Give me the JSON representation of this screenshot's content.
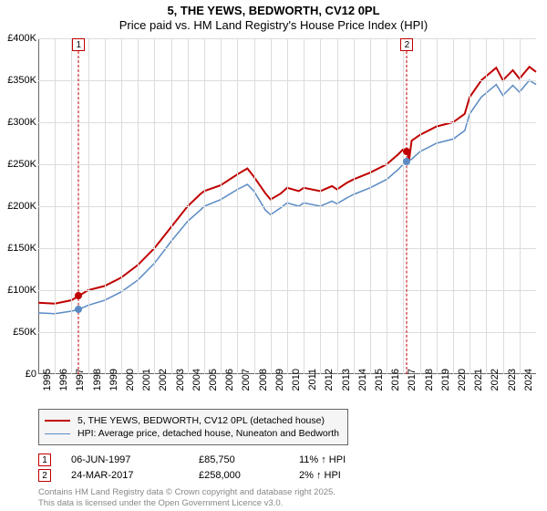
{
  "title": "5, THE YEWS, BEDWORTH, CV12 0PL",
  "subtitle": "Price paid vs. HM Land Registry's House Price Index (HPI)",
  "chart": {
    "type": "line",
    "x_start": 1995,
    "x_end": 2025,
    "x_ticks": [
      1995,
      1996,
      1997,
      1998,
      1999,
      2000,
      2001,
      2002,
      2003,
      2004,
      2005,
      2006,
      2007,
      2008,
      2009,
      2010,
      2011,
      2012,
      2013,
      2014,
      2015,
      2016,
      2017,
      2018,
      2019,
      2020,
      2021,
      2022,
      2023,
      2024
    ],
    "y_min": 0,
    "y_max": 400000,
    "y_ticks": [
      0,
      50000,
      100000,
      150000,
      200000,
      250000,
      300000,
      350000,
      400000
    ],
    "y_tick_labels": [
      "£0",
      "£50K",
      "£100K",
      "£150K",
      "£200K",
      "£250K",
      "£300K",
      "£350K",
      "£400K"
    ],
    "grid_color": "#dcdcdc",
    "axis_color": "#666666",
    "background_color": "#ffffff",
    "series_red": {
      "color": "#c00000",
      "width": 2,
      "points": [
        [
          1995,
          85000
        ],
        [
          1996,
          84000
        ],
        [
          1997,
          88000
        ],
        [
          1997.43,
          93000
        ],
        [
          1998,
          100000
        ],
        [
          1999,
          105000
        ],
        [
          2000,
          115000
        ],
        [
          2001,
          130000
        ],
        [
          2002,
          150000
        ],
        [
          2003,
          175000
        ],
        [
          2004,
          200000
        ],
        [
          2004.8,
          215000
        ],
        [
          2005,
          218000
        ],
        [
          2006,
          225000
        ],
        [
          2007,
          238000
        ],
        [
          2007.6,
          245000
        ],
        [
          2008,
          235000
        ],
        [
          2008.7,
          215000
        ],
        [
          2009,
          208000
        ],
        [
          2009.6,
          215000
        ],
        [
          2010,
          222000
        ],
        [
          2010.7,
          218000
        ],
        [
          2011,
          222000
        ],
        [
          2012,
          218000
        ],
        [
          2012.7,
          224000
        ],
        [
          2013,
          220000
        ],
        [
          2013.6,
          228000
        ],
        [
          2014,
          232000
        ],
        [
          2015,
          240000
        ],
        [
          2016,
          250000
        ],
        [
          2016.7,
          262000
        ],
        [
          2017,
          268000
        ],
        [
          2017.22,
          265000
        ],
        [
          2017.35,
          255000
        ],
        [
          2017.5,
          278000
        ],
        [
          2018,
          285000
        ],
        [
          2019,
          295000
        ],
        [
          2020,
          300000
        ],
        [
          2020.7,
          310000
        ],
        [
          2021,
          330000
        ],
        [
          2021.7,
          350000
        ],
        [
          2022,
          355000
        ],
        [
          2022.6,
          365000
        ],
        [
          2023,
          350000
        ],
        [
          2023.6,
          362000
        ],
        [
          2024,
          352000
        ],
        [
          2024.6,
          366000
        ],
        [
          2025,
          360000
        ]
      ]
    },
    "series_blue": {
      "color": "#5a8bc4",
      "width": 1.5,
      "points": [
        [
          1995,
          73000
        ],
        [
          1996,
          72000
        ],
        [
          1997,
          75000
        ],
        [
          1997.43,
          77000
        ],
        [
          1998,
          82000
        ],
        [
          1999,
          88000
        ],
        [
          2000,
          98000
        ],
        [
          2001,
          112000
        ],
        [
          2002,
          132000
        ],
        [
          2003,
          158000
        ],
        [
          2004,
          182000
        ],
        [
          2004.8,
          196000
        ],
        [
          2005,
          200000
        ],
        [
          2006,
          208000
        ],
        [
          2007,
          220000
        ],
        [
          2007.6,
          226000
        ],
        [
          2008,
          218000
        ],
        [
          2008.7,
          195000
        ],
        [
          2009,
          190000
        ],
        [
          2009.6,
          198000
        ],
        [
          2010,
          204000
        ],
        [
          2010.7,
          200000
        ],
        [
          2011,
          204000
        ],
        [
          2012,
          200000
        ],
        [
          2012.7,
          206000
        ],
        [
          2013,
          203000
        ],
        [
          2013.6,
          210000
        ],
        [
          2014,
          214000
        ],
        [
          2015,
          222000
        ],
        [
          2016,
          232000
        ],
        [
          2016.7,
          244000
        ],
        [
          2017,
          250000
        ],
        [
          2017.22,
          253000
        ],
        [
          2017.5,
          256000
        ],
        [
          2018,
          265000
        ],
        [
          2019,
          275000
        ],
        [
          2020,
          280000
        ],
        [
          2020.7,
          290000
        ],
        [
          2021,
          310000
        ],
        [
          2021.7,
          330000
        ],
        [
          2022,
          335000
        ],
        [
          2022.6,
          345000
        ],
        [
          2023,
          332000
        ],
        [
          2023.6,
          344000
        ],
        [
          2024,
          336000
        ],
        [
          2024.6,
          350000
        ],
        [
          2025,
          345000
        ]
      ]
    },
    "annotations": [
      {
        "n": "1",
        "x": 1997.43,
        "y_blue": 77000,
        "y_red": 93000
      },
      {
        "n": "2",
        "x": 2017.22,
        "y_blue": 253000,
        "y_red": 265000
      }
    ]
  },
  "legend": {
    "red": "5, THE YEWS, BEDWORTH, CV12 0PL (detached house)",
    "blue": "HPI: Average price, detached house, Nuneaton and Bedworth"
  },
  "sales": [
    {
      "n": "1",
      "date": "06-JUN-1997",
      "price": "£85,750",
      "delta": "11% ↑ HPI"
    },
    {
      "n": "2",
      "date": "24-MAR-2017",
      "price": "£258,000",
      "delta": "2% ↑ HPI"
    }
  ],
  "footnote1": "Contains HM Land Registry data © Crown copyright and database right 2025.",
  "footnote2": "This data is licensed under the Open Government Licence v3.0."
}
